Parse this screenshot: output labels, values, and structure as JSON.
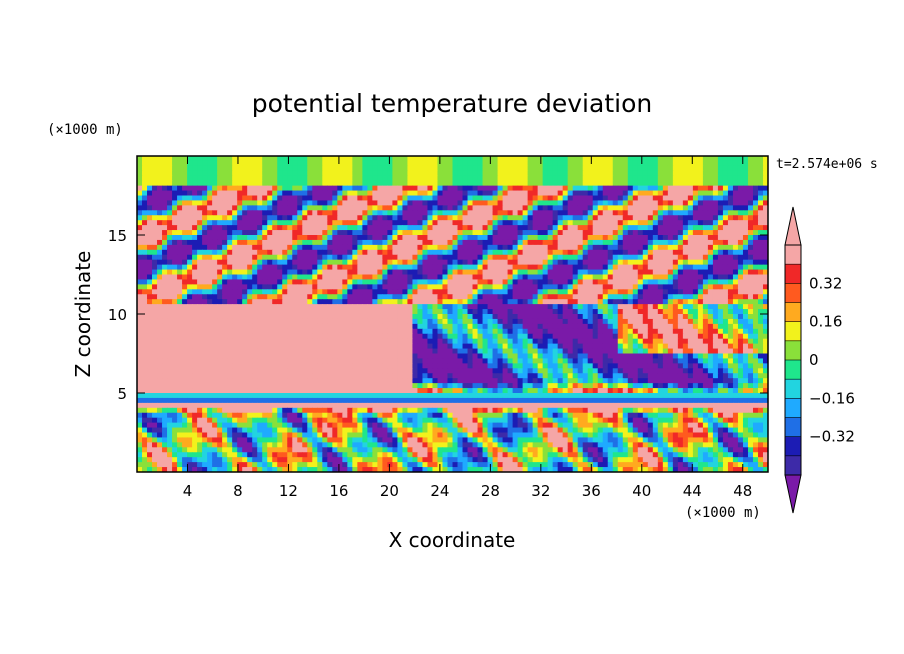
{
  "chart_data": {
    "type": "heatmap",
    "title": "potential temperature deviation",
    "xlabel": "X coordinate",
    "ylabel": "Z coordinate",
    "x_unit": "(×1000 m)",
    "y_unit": "(×1000 m)",
    "time_label": "t=2.574e+06 s",
    "xlim": [
      0,
      50
    ],
    "ylim": [
      0,
      20
    ],
    "x_ticks": [
      4,
      8,
      12,
      16,
      20,
      24,
      28,
      32,
      36,
      40,
      44,
      48
    ],
    "y_ticks": [
      5,
      10,
      15
    ],
    "colorbar": {
      "levels": [
        -0.48,
        -0.4,
        -0.32,
        -0.24,
        -0.16,
        -0.08,
        0,
        0.08,
        0.16,
        0.24,
        0.32,
        0.4,
        0.48
      ],
      "colors": [
        "#7a1aa8",
        "#3d2aa8",
        "#1c1cb4",
        "#1f6fe6",
        "#1faaff",
        "#22d4e0",
        "#1fe68c",
        "#8ae03a",
        "#f2f21c",
        "#ffaa1f",
        "#ff5a1f",
        "#f02828",
        "#f5a6a6",
        "#f5a6a6"
      ],
      "tick_labels": [
        "0.32",
        "0.16",
        "0",
        "−0.16",
        "−0.32"
      ],
      "tick_values": [
        0.32,
        0.16,
        0,
        -0.16,
        -0.32
      ],
      "extend": "both"
    },
    "grid": false
  }
}
